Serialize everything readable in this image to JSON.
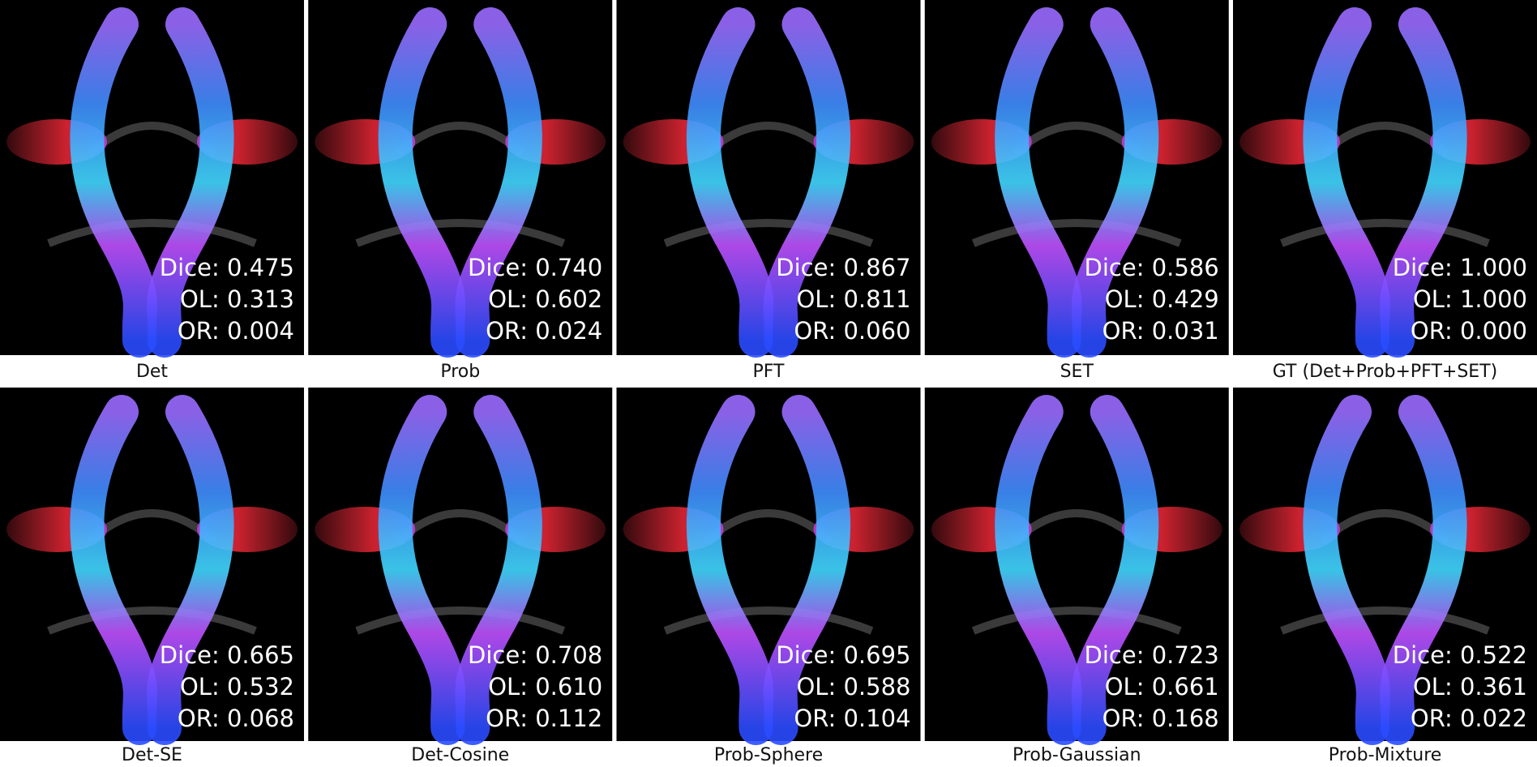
{
  "metric_labels": [
    "Dice:",
    "OL:",
    "OR:"
  ],
  "panels": [
    {
      "label": "Det",
      "metrics": [
        "0.475",
        "0.313",
        "0.004"
      ]
    },
    {
      "label": "Prob",
      "metrics": [
        "0.740",
        "0.602",
        "0.024"
      ]
    },
    {
      "label": "PFT",
      "metrics": [
        "0.867",
        "0.811",
        "0.060"
      ]
    },
    {
      "label": "SET",
      "metrics": [
        "0.586",
        "0.429",
        "0.031"
      ]
    },
    {
      "label": "GT (Det+Prob+PFT+SET)",
      "metrics": [
        "1.000",
        "1.000",
        "0.000"
      ]
    },
    {
      "label": "Det-SE",
      "metrics": [
        "0.665",
        "0.532",
        "0.068"
      ]
    },
    {
      "label": "Det-Cosine",
      "metrics": [
        "0.708",
        "0.610",
        "0.112"
      ]
    },
    {
      "label": "Prob-Sphere",
      "metrics": [
        "0.695",
        "0.588",
        "0.104"
      ]
    },
    {
      "label": "Prob-Gaussian",
      "metrics": [
        "0.723",
        "0.661",
        "0.168"
      ]
    },
    {
      "label": "Prob-Mixture",
      "metrics": [
        "0.522",
        "0.361",
        "0.022"
      ]
    }
  ]
}
